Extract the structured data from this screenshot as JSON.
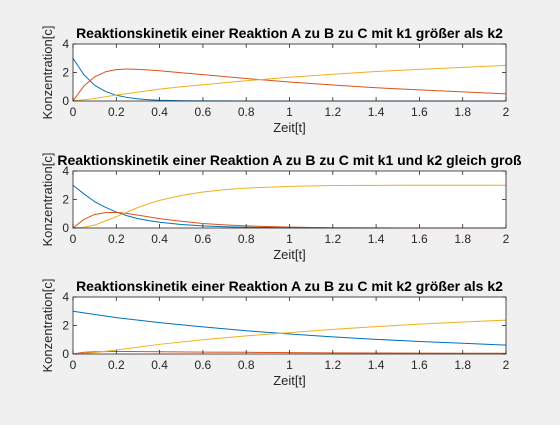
{
  "chart_data": [
    {
      "type": "line",
      "title": "Reaktionskinetik einer Reaktion A zu B zu C mit k1 größer als k2",
      "xlabel": "Zeit[t]",
      "ylabel": "Konzentration[c]",
      "xlim": [
        0,
        2
      ],
      "ylim": [
        0,
        4
      ],
      "xticks": [
        "0",
        "0.2",
        "0.4",
        "0.6",
        "0.8",
        "1",
        "1.2",
        "1.4",
        "1.6",
        "1.8",
        "2"
      ],
      "yticks": [
        "0",
        "2",
        "4"
      ],
      "grid": false,
      "series": [
        {
          "color": "#0072bd",
          "x": [
            0,
            0.05,
            0.1,
            0.15,
            0.2,
            0.25,
            0.3,
            0.35,
            0.4,
            0.5,
            0.6,
            0.8,
            1.0,
            1.5,
            2.0
          ],
          "values": [
            3.0,
            1.85,
            1.1,
            0.67,
            0.4,
            0.25,
            0.15,
            0.09,
            0.05,
            0.02,
            0.01,
            0.0,
            0.0,
            0.0,
            0.0
          ]
        },
        {
          "color": "#d95319",
          "x": [
            0,
            0.05,
            0.1,
            0.15,
            0.2,
            0.25,
            0.3,
            0.35,
            0.4,
            0.5,
            0.6,
            0.8,
            1.0,
            1.2,
            1.4,
            1.6,
            1.8,
            2.0
          ],
          "values": [
            0.0,
            1.05,
            1.7,
            2.05,
            2.2,
            2.25,
            2.22,
            2.18,
            2.12,
            1.98,
            1.85,
            1.58,
            1.33,
            1.12,
            0.93,
            0.78,
            0.64,
            0.5
          ]
        },
        {
          "color": "#edb120",
          "x": [
            0,
            0.1,
            0.2,
            0.3,
            0.4,
            0.5,
            0.6,
            0.8,
            1.0,
            1.2,
            1.4,
            1.6,
            1.8,
            2.0
          ],
          "values": [
            0.0,
            0.18,
            0.42,
            0.62,
            0.83,
            1.0,
            1.14,
            1.42,
            1.67,
            1.88,
            2.07,
            2.22,
            2.36,
            2.5
          ]
        }
      ]
    },
    {
      "type": "line",
      "title": "Reaktionskinetik einer Reaktion A zu B zu C mit k1 und k2 gleich groß",
      "xlabel": "Zeit[t]",
      "ylabel": "Konzentration[c]",
      "xlim": [
        0,
        2
      ],
      "ylim": [
        0,
        4
      ],
      "xticks": [
        "0",
        "0.2",
        "0.4",
        "0.6",
        "0.8",
        "1",
        "1.2",
        "1.4",
        "1.6",
        "1.8",
        "2"
      ],
      "yticks": [
        "0",
        "2",
        "4"
      ],
      "grid": false,
      "series": [
        {
          "color": "#0072bd",
          "x": [
            0,
            0.05,
            0.1,
            0.15,
            0.2,
            0.25,
            0.3,
            0.35,
            0.4,
            0.5,
            0.6,
            0.7,
            0.8,
            1.0,
            1.2,
            1.5,
            2.0
          ],
          "values": [
            3.0,
            2.4,
            1.85,
            1.45,
            1.12,
            0.86,
            0.66,
            0.52,
            0.4,
            0.25,
            0.15,
            0.09,
            0.05,
            0.02,
            0.0,
            0.0,
            0.0
          ]
        },
        {
          "color": "#d95319",
          "x": [
            0,
            0.05,
            0.1,
            0.15,
            0.2,
            0.25,
            0.3,
            0.35,
            0.4,
            0.5,
            0.6,
            0.7,
            0.8,
            1.0,
            1.2,
            1.5,
            2.0
          ],
          "values": [
            0.0,
            0.6,
            0.95,
            1.08,
            1.1,
            1.02,
            0.9,
            0.78,
            0.66,
            0.47,
            0.32,
            0.22,
            0.15,
            0.06,
            0.02,
            0.0,
            0.0
          ]
        },
        {
          "color": "#edb120",
          "x": [
            0,
            0.05,
            0.1,
            0.15,
            0.2,
            0.25,
            0.3,
            0.35,
            0.4,
            0.5,
            0.6,
            0.7,
            0.8,
            1.0,
            1.2,
            1.5,
            2.0
          ],
          "values": [
            0.0,
            0.05,
            0.2,
            0.5,
            0.8,
            1.12,
            1.44,
            1.7,
            1.94,
            2.28,
            2.53,
            2.69,
            2.8,
            2.92,
            2.98,
            3.0,
            3.0
          ]
        }
      ]
    },
    {
      "type": "line",
      "title": "Reaktionskinetik einer Reaktion A zu B zu C mit k2 größer als k2",
      "xlabel": "Zeit[t]",
      "ylabel": "Konzentration[c]",
      "xlim": [
        0,
        2
      ],
      "ylim": [
        0,
        4
      ],
      "xticks": [
        "0",
        "0.2",
        "0.4",
        "0.6",
        "0.8",
        "1",
        "1.2",
        "1.4",
        "1.6",
        "1.8",
        "2"
      ],
      "yticks": [
        "0",
        "2",
        "4"
      ],
      "grid": false,
      "series": [
        {
          "color": "#0072bd",
          "x": [
            0,
            0.2,
            0.4,
            0.6,
            0.8,
            1.0,
            1.2,
            1.4,
            1.6,
            1.8,
            2.0
          ],
          "values": [
            3.0,
            2.55,
            2.2,
            1.9,
            1.63,
            1.4,
            1.2,
            1.03,
            0.88,
            0.75,
            0.62
          ]
        },
        {
          "color": "#d95319",
          "x": [
            0,
            0.05,
            0.1,
            0.2,
            0.4,
            0.6,
            0.8,
            1.0,
            1.2,
            1.4,
            1.6,
            1.8,
            2.0
          ],
          "values": [
            0.0,
            0.12,
            0.16,
            0.18,
            0.16,
            0.13,
            0.12,
            0.1,
            0.08,
            0.07,
            0.06,
            0.05,
            0.05
          ]
        },
        {
          "color": "#edb120",
          "x": [
            0,
            0.1,
            0.2,
            0.4,
            0.6,
            0.8,
            1.0,
            1.2,
            1.4,
            1.6,
            1.8,
            2.0
          ],
          "values": [
            0.0,
            0.1,
            0.28,
            0.68,
            1.0,
            1.27,
            1.5,
            1.73,
            1.92,
            2.1,
            2.25,
            2.38
          ]
        }
      ]
    }
  ]
}
